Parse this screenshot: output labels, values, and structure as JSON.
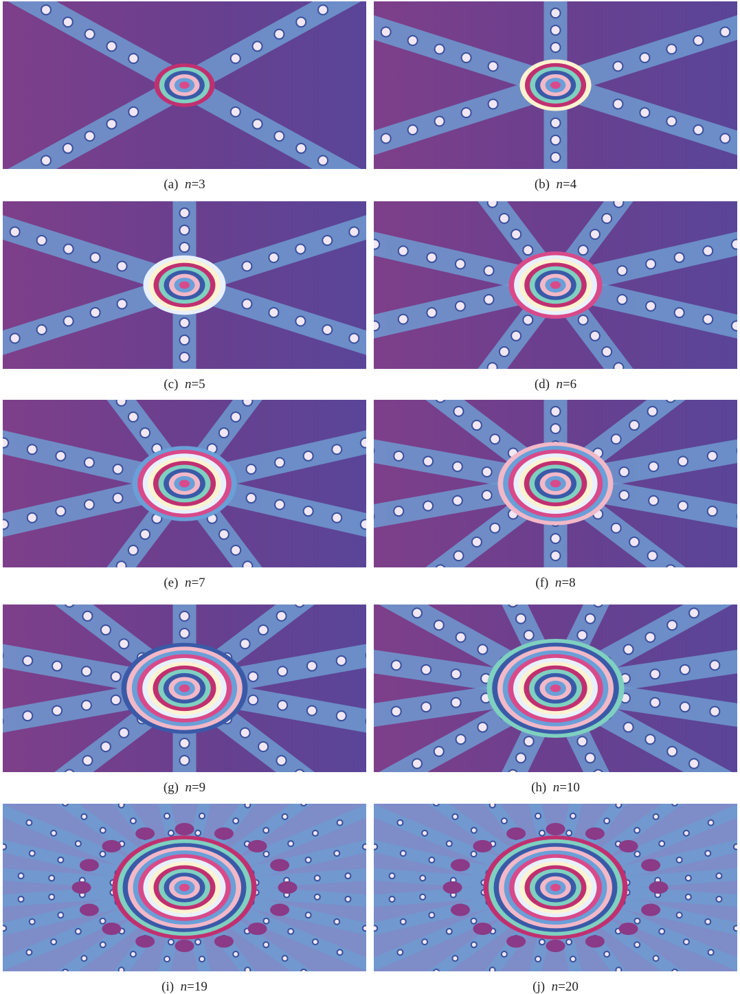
{
  "panels": [
    {
      "tag": "(a)",
      "var": "n",
      "eq": "=3"
    },
    {
      "tag": "(b)",
      "var": "n",
      "eq": "=4"
    },
    {
      "tag": "(c)",
      "var": "n",
      "eq": "=5"
    },
    {
      "tag": "(d)",
      "var": "n",
      "eq": "=6"
    },
    {
      "tag": "(e)",
      "var": "n",
      "eq": "=7"
    },
    {
      "tag": "(f)",
      "var": "n",
      "eq": "=8"
    },
    {
      "tag": "(g)",
      "var": "n",
      "eq": "=9"
    },
    {
      "tag": "(h)",
      "var": "n",
      "eq": "=10"
    },
    {
      "tag": "(i)",
      "var": "n",
      "eq": "=19"
    },
    {
      "tag": "(j)",
      "var": "n",
      "eq": "=20"
    }
  ]
}
